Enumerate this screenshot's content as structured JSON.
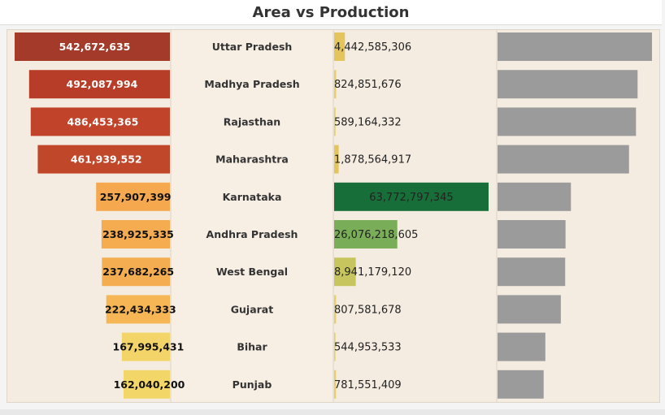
{
  "title": "Area vs Production",
  "chart_data": {
    "type": "bar",
    "title": "Area vs Production",
    "categories": [
      "Uttar Pradesh",
      "Madhya Pradesh",
      "Rajasthan",
      "Maharashtra",
      "Karnataka",
      "Andhra Pradesh",
      "West Bengal",
      "Gujarat",
      "Bihar",
      "Punjab"
    ],
    "series": [
      {
        "values": [
          542672635,
          492087994,
          486453365,
          461939552,
          257907399,
          238925335,
          237682265,
          222434333,
          167995431,
          162040200
        ],
        "labels": [
          "542,672,635",
          "492,087,994",
          "486,453,365",
          "461,939,552",
          "257,907,399",
          "238,925,335",
          "237,682,265",
          "222,434,333",
          "167,995,431",
          "162,040,200"
        ],
        "colors": [
          "#a33a2a",
          "#b83d28",
          "#c0432a",
          "#c0472a",
          "#f5a84e",
          "#f5ab50",
          "#f5ad52",
          "#f6b656",
          "#f3d468",
          "#f3d668"
        ]
      },
      {
        "values": [
          4442585306,
          824851676,
          589164332,
          1878564917,
          63772797345,
          26076218605,
          8941179120,
          807581678,
          544953533,
          781551409
        ],
        "labels": [
          "4,442,585,306",
          "824,851,676",
          "589,164,332",
          "1,878,564,917",
          "63,772,797,345",
          "26,076,218,605",
          "8,941,179,120",
          "807,581,678",
          "544,953,533",
          "781,551,409"
        ],
        "colors": [
          "#e3c55c",
          "#e5cf6a",
          "#e5cf6a",
          "#e3c55c",
          "#176e38",
          "#7aad58",
          "#c7c65e",
          "#e5cf6a",
          "#e5cf6a",
          "#e5cf6a"
        ]
      },
      {
        "values": [
          542672635,
          492087994,
          486453365,
          461939552,
          257907399,
          238925335,
          237682265,
          222434333,
          167995431,
          162040200
        ],
        "colors": [
          "#9b9b9b"
        ]
      }
    ]
  }
}
